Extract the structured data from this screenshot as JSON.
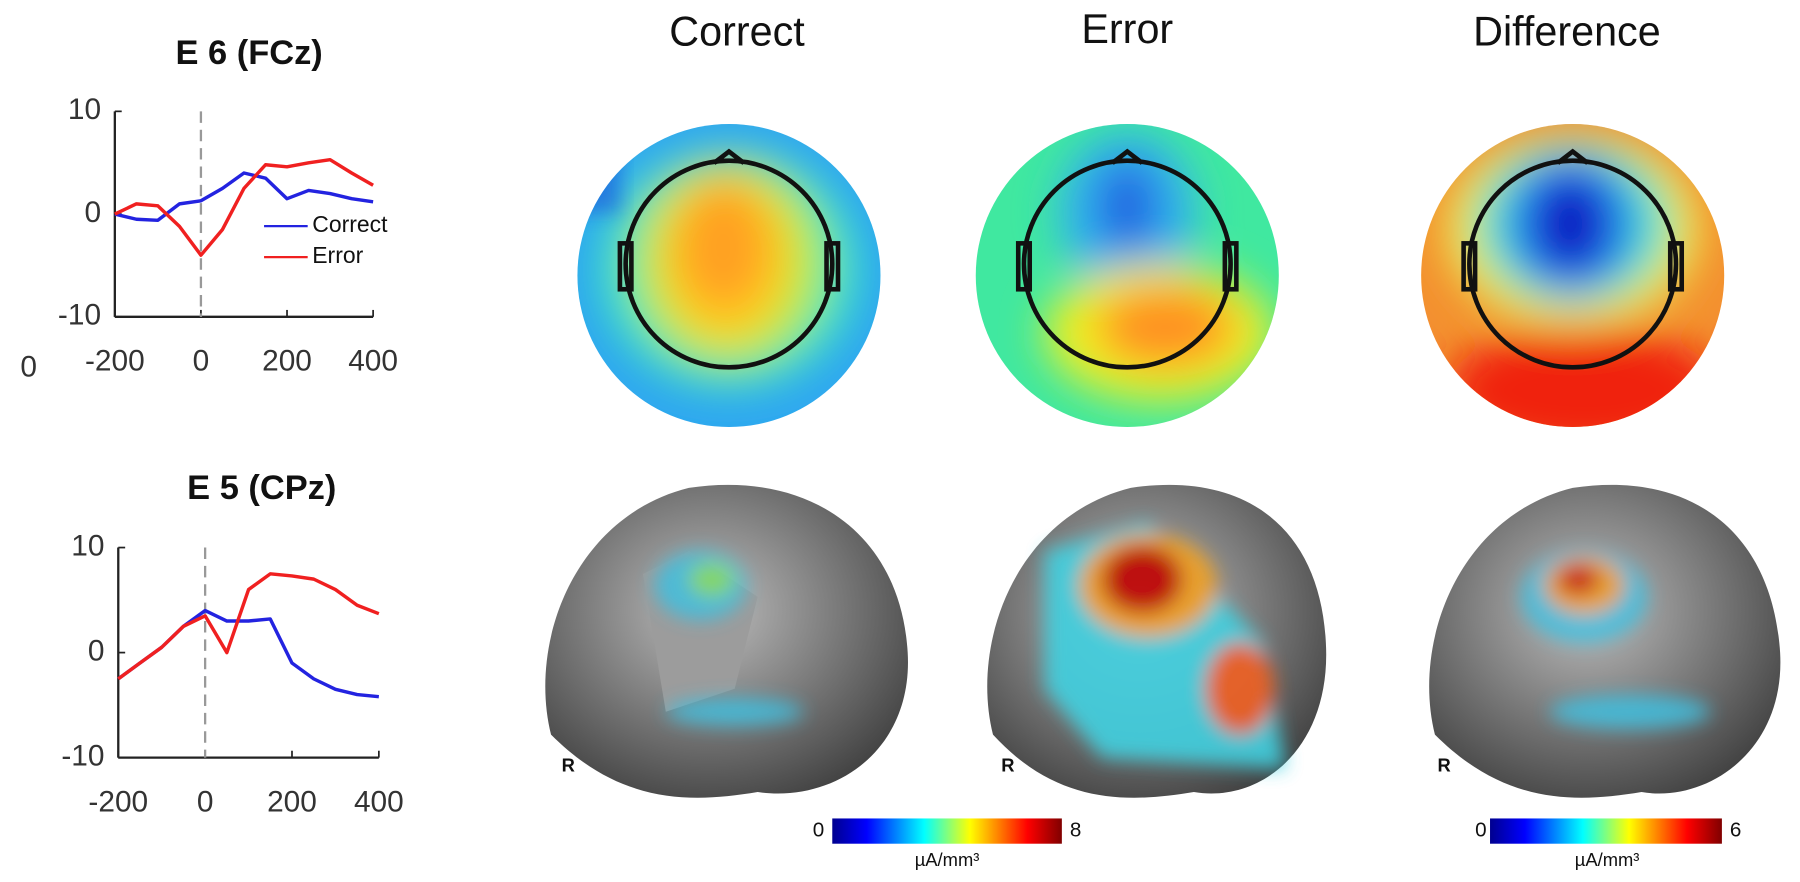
{
  "chart_data": [
    {
      "type": "line",
      "title": "E 6 (FCz)",
      "x": [
        -200,
        -150,
        -100,
        -50,
        0,
        50,
        100,
        150,
        200,
        250,
        300,
        350,
        400
      ],
      "series": [
        {
          "name": "Correct",
          "color": "#2323e0",
          "values": [
            0,
            -0.5,
            -0.6,
            1.0,
            1.3,
            2.5,
            4.0,
            3.5,
            1.5,
            2.3,
            2.0,
            1.5,
            1.2
          ]
        },
        {
          "name": "Error",
          "color": "#f02020",
          "values": [
            0,
            1.0,
            0.8,
            -1.2,
            -4.0,
            -1.5,
            2.5,
            4.8,
            4.6,
            5.0,
            5.3,
            4.0,
            2.8
          ]
        }
      ],
      "xlim": [
        -200,
        400
      ],
      "xticks": [
        -200,
        0,
        200,
        400
      ],
      "ylim": [
        -10,
        10
      ],
      "yticks": [
        -10,
        0,
        10
      ],
      "vline": 0,
      "legend": "lower right"
    },
    {
      "type": "line",
      "title": "E 5 (CPz)",
      "x": [
        -200,
        -150,
        -100,
        -50,
        0,
        50,
        100,
        150,
        200,
        250,
        300,
        350,
        400
      ],
      "series": [
        {
          "color": "#2323e0",
          "values": [
            -2.5,
            -1,
            0.5,
            2.5,
            4,
            3,
            3,
            3.2,
            -1,
            -2.5,
            -3.5,
            -4,
            -4.2
          ]
        },
        {
          "color": "#f02020",
          "values": [
            -2.5,
            -1,
            0.5,
            2.5,
            3.5,
            0,
            6,
            7.5,
            7.3,
            7,
            6,
            4.5,
            3.7
          ]
        }
      ],
      "xlim": [
        -200,
        400
      ],
      "xticks": [
        -200,
        0,
        200,
        400
      ],
      "ylim": [
        -10,
        10
      ],
      "yticks": [
        -10,
        0,
        10
      ],
      "vline": 0
    }
  ],
  "fragment": "0",
  "columns": [
    "Correct",
    "Error",
    "Difference"
  ],
  "hemisphere_labels": [
    "R",
    "R",
    "R"
  ],
  "colorbars": [
    {
      "min": "0",
      "max": "8",
      "unit": "µA/mm³"
    },
    {
      "min": "0",
      "max": "6",
      "unit": "µA/mm³"
    }
  ]
}
